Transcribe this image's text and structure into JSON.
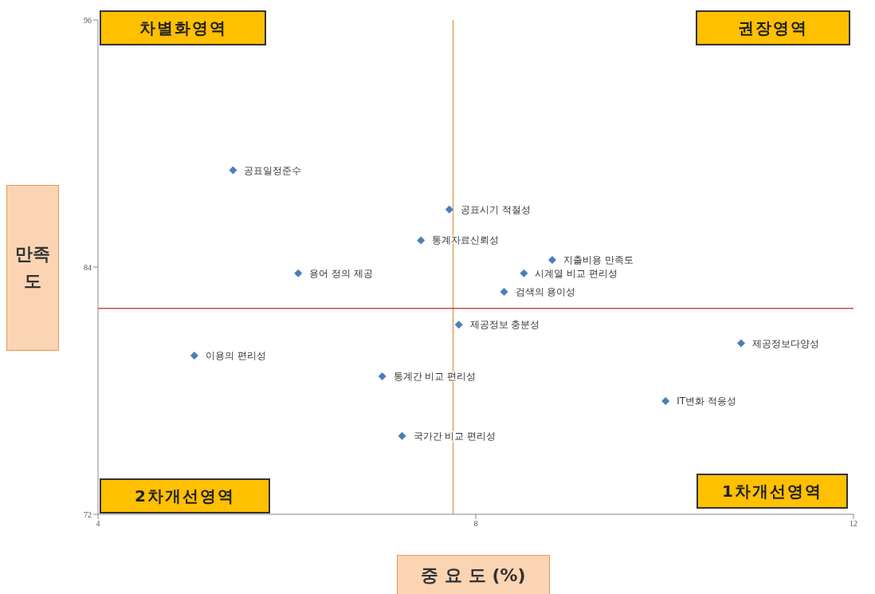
{
  "chart_data": {
    "type": "scatter",
    "xlabel": "중 요 도 (%)",
    "ylabel": "만족도",
    "xlim": [
      4,
      12
    ],
    "xticks": [
      4,
      8,
      12
    ],
    "ylim": [
      72,
      96
    ],
    "yticks": [
      72,
      84,
      96
    ],
    "grid": false,
    "marker": "diamond",
    "series": [
      {
        "color": "#4a7ebb",
        "x": [
          5.43,
          7.72,
          7.42,
          8.81,
          6.12,
          8.51,
          8.3,
          7.82,
          10.81,
          5.02,
          7.01,
          10.01,
          7.22
        ],
        "values": [
          88.7,
          86.8,
          85.3,
          84.35,
          83.7,
          83.7,
          82.8,
          81.2,
          80.3,
          79.7,
          78.7,
          77.5,
          75.8
        ]
      }
    ],
    "ref_lines": [
      {
        "axis": "x",
        "value": 7.76,
        "color": "#e8a060"
      },
      {
        "axis": "y",
        "value": 82,
        "color": "#c0504d"
      }
    ],
    "annotations": [
      "차별화영역",
      "권장영역",
      "2차개선영역",
      "1차개선영역",
      {
        "text": "공표일정준수",
        "x": 5.43,
        "y": 88.7
      },
      {
        "text": "공표시기 적절성",
        "x": 7.72,
        "y": 86.8
      },
      {
        "text": "통계자료신뢰성",
        "x": 7.42,
        "y": 85.3
      },
      {
        "text": "지출비용 만족도",
        "x": 8.81,
        "y": 84.35
      },
      {
        "text": "용어 정의 제공",
        "x": 6.12,
        "y": 83.7
      },
      {
        "text": "시계열 비교 편리성",
        "x": 8.51,
        "y": 83.7
      },
      {
        "text": "검색의 용이성",
        "x": 8.3,
        "y": 82.8
      },
      {
        "text": "제공정보 충분성",
        "x": 7.82,
        "y": 81.2
      },
      {
        "text": "제공정보다양성",
        "x": 10.81,
        "y": 80.3
      },
      {
        "text": "이용의 편리성",
        "x": 5.02,
        "y": 79.7
      },
      {
        "text": "통계간 비교 편리성",
        "x": 7.01,
        "y": 78.7
      },
      {
        "text": "IT변화 적응성",
        "x": 10.01,
        "y": 77.5
      },
      {
        "text": "국가간 비교 편리성",
        "x": 7.22,
        "y": 75.8
      }
    ]
  }
}
